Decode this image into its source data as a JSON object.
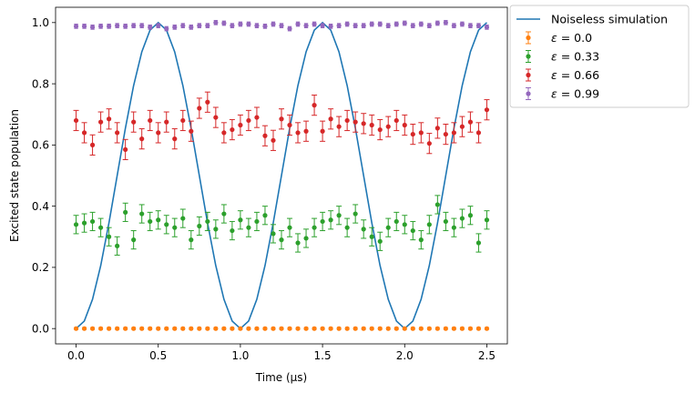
{
  "chart_data": {
    "type": "scatter",
    "xlabel": "Time (μs)",
    "ylabel": "Excited state population",
    "xlim": [
      -0.125,
      2.625
    ],
    "ylim": [
      -0.05,
      1.05
    ],
    "xticks": [
      0.0,
      0.5,
      1.0,
      1.5,
      2.0,
      2.5
    ],
    "xtick_labels": [
      "0.0",
      "0.5",
      "1.0",
      "1.5",
      "2.0",
      "2.5"
    ],
    "yticks": [
      0.0,
      0.2,
      0.4,
      0.6,
      0.8,
      1.0
    ],
    "ytick_labels": [
      "0.0",
      "0.2",
      "0.4",
      "0.6",
      "0.8",
      "1.0"
    ],
    "grid": false,
    "legend_position": "outside top-right",
    "line": {
      "name": "Noiseless simulation",
      "color": "#1f77b4",
      "formula": "sin^2(pi * t)",
      "x_start": 0.0,
      "x_end": 2.5,
      "n_points": 51
    },
    "series": [
      {
        "name": "ε = 0.0",
        "legend_symbol": "ε",
        "legend_value": " = 0.0",
        "color": "#ff7f0e",
        "x_start": 0.0,
        "x_end": 2.5,
        "values": [
          0.0,
          0.0,
          0.0,
          0.0,
          0.0,
          0.0,
          0.0,
          0.0,
          0.0,
          0.0,
          0.0,
          0.0,
          0.0,
          0.0,
          0.0,
          0.0,
          0.0,
          0.0,
          0.0,
          0.0,
          0.0,
          0.0,
          0.0,
          0.0,
          0.0,
          0.0,
          0.0,
          0.0,
          0.0,
          0.0,
          0.0,
          0.0,
          0.0,
          0.0,
          0.0,
          0.0,
          0.0,
          0.0,
          0.0,
          0.0,
          0.0,
          0.0,
          0.0,
          0.0,
          0.0,
          0.0,
          0.0,
          0.0,
          0.0,
          0.0,
          0.0
        ],
        "error": 0.004
      },
      {
        "name": "ε = 0.33",
        "legend_symbol": "ε",
        "legend_value": " = 0.33",
        "color": "#2ca02c",
        "x_start": 0.0,
        "x_end": 2.5,
        "values": [
          0.34,
          0.345,
          0.35,
          0.33,
          0.3,
          0.27,
          0.38,
          0.29,
          0.375,
          0.35,
          0.355,
          0.34,
          0.33,
          0.36,
          0.29,
          0.335,
          0.35,
          0.325,
          0.375,
          0.32,
          0.355,
          0.33,
          0.35,
          0.37,
          0.31,
          0.29,
          0.33,
          0.28,
          0.295,
          0.33,
          0.35,
          0.355,
          0.37,
          0.33,
          0.375,
          0.325,
          0.3,
          0.285,
          0.33,
          0.35,
          0.34,
          0.32,
          0.29,
          0.34,
          0.405,
          0.35,
          0.33,
          0.36,
          0.37,
          0.28,
          0.355
        ],
        "error": 0.03
      },
      {
        "name": "ε = 0.66",
        "legend_symbol": "ε",
        "legend_value": " = 0.66",
        "color": "#d62728",
        "x_start": 0.0,
        "x_end": 2.5,
        "values": [
          0.68,
          0.64,
          0.6,
          0.675,
          0.685,
          0.64,
          0.585,
          0.675,
          0.62,
          0.68,
          0.64,
          0.675,
          0.62,
          0.68,
          0.645,
          0.72,
          0.74,
          0.69,
          0.64,
          0.65,
          0.665,
          0.68,
          0.69,
          0.63,
          0.615,
          0.685,
          0.665,
          0.64,
          0.645,
          0.73,
          0.645,
          0.685,
          0.66,
          0.68,
          0.675,
          0.67,
          0.665,
          0.65,
          0.66,
          0.68,
          0.665,
          0.635,
          0.64,
          0.605,
          0.655,
          0.635,
          0.64,
          0.66,
          0.675,
          0.64,
          0.715
        ],
        "error": 0.033
      },
      {
        "name": "ε = 0.99",
        "legend_symbol": "ε",
        "legend_value": " = 0.99",
        "color": "#9467bd",
        "x_start": 0.0,
        "x_end": 2.5,
        "values": [
          0.988,
          0.988,
          0.985,
          0.988,
          0.988,
          0.99,
          0.988,
          0.99,
          0.99,
          0.985,
          0.99,
          0.98,
          0.985,
          0.99,
          0.985,
          0.99,
          0.99,
          1.0,
          0.998,
          0.99,
          0.995,
          0.995,
          0.99,
          0.988,
          0.995,
          0.99,
          0.98,
          0.995,
          0.99,
          0.995,
          0.99,
          0.988,
          0.99,
          0.995,
          0.99,
          0.99,
          0.995,
          0.995,
          0.99,
          0.995,
          0.998,
          0.99,
          0.995,
          0.99,
          0.998,
          1.0,
          0.99,
          0.995,
          0.99,
          0.99,
          0.985
        ],
        "error": 0.007
      }
    ]
  }
}
